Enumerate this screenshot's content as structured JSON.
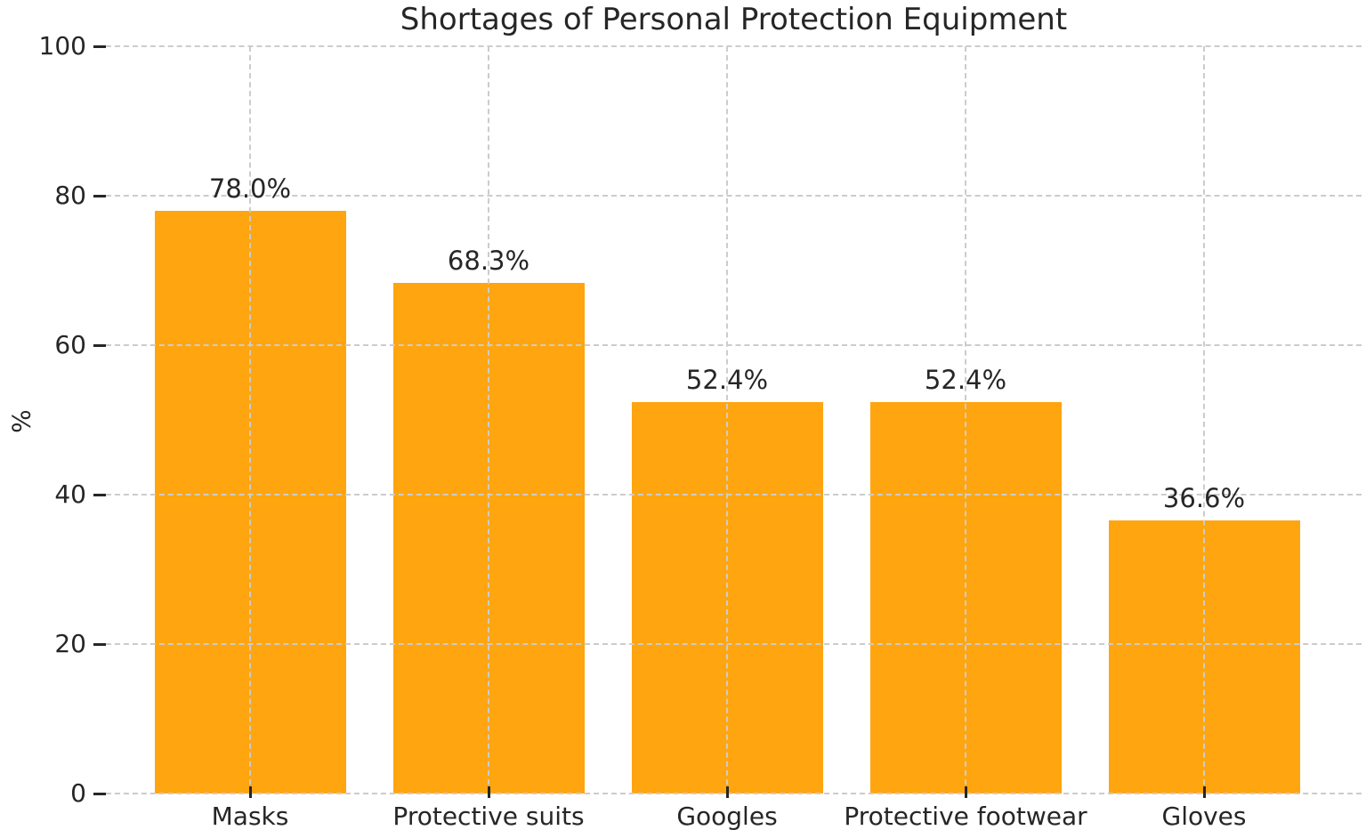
{
  "chart_data": {
    "type": "bar",
    "title": "Shortages of Personal Protection Equipment",
    "ylabel": "%",
    "xlabel": "",
    "categories": [
      "Masks",
      "Protective suits",
      "Googles",
      "Protective footwear",
      "Gloves"
    ],
    "values": [
      78.0,
      68.3,
      52.4,
      52.4,
      36.6
    ],
    "bar_value_labels": [
      "78.0%",
      "68.3%",
      "52.4%",
      "52.4%",
      "36.6%"
    ],
    "ylim": [
      0,
      100
    ],
    "yticks": [
      0,
      20,
      40,
      60,
      80,
      100
    ],
    "ytick_labels": [
      "0",
      "20",
      "40",
      "60",
      "80",
      "100"
    ],
    "bar_color": "#FFA510",
    "gridline_color": "#cccccc",
    "grid_style": "dashed",
    "grid_above_bars": true,
    "text_color": "#262626",
    "background_color": "#ffffff",
    "legend": "none"
  }
}
